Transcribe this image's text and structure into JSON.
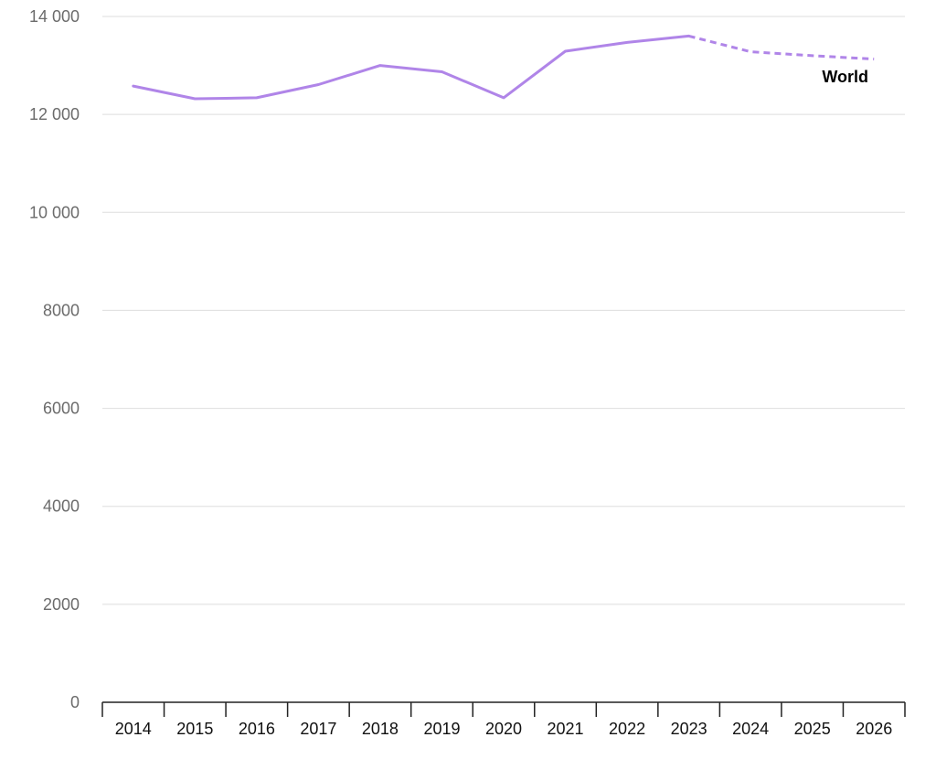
{
  "chart_data": {
    "type": "line",
    "title": "",
    "xlabel": "",
    "ylabel": "",
    "x": [
      "2014",
      "2015",
      "2016",
      "2017",
      "2018",
      "2019",
      "2020",
      "2021",
      "2022",
      "2023",
      "2024",
      "2025",
      "2026"
    ],
    "ylim": [
      0,
      14000
    ],
    "yticks": [
      0,
      2000,
      4000,
      6000,
      8000,
      10000,
      12000,
      14000
    ],
    "ytick_labels": [
      "0",
      "2000",
      "4000",
      "6000",
      "8000",
      "10 000",
      "12 000",
      "14 000"
    ],
    "grid": true,
    "series": [
      {
        "name": "World",
        "color": "#b085e8",
        "values": [
          12580,
          12320,
          12340,
          12610,
          13000,
          12870,
          12340,
          13290,
          13470,
          13600,
          13280,
          13200,
          13130
        ],
        "actual_through": "2023",
        "forecast_style": "dashed"
      }
    ]
  }
}
